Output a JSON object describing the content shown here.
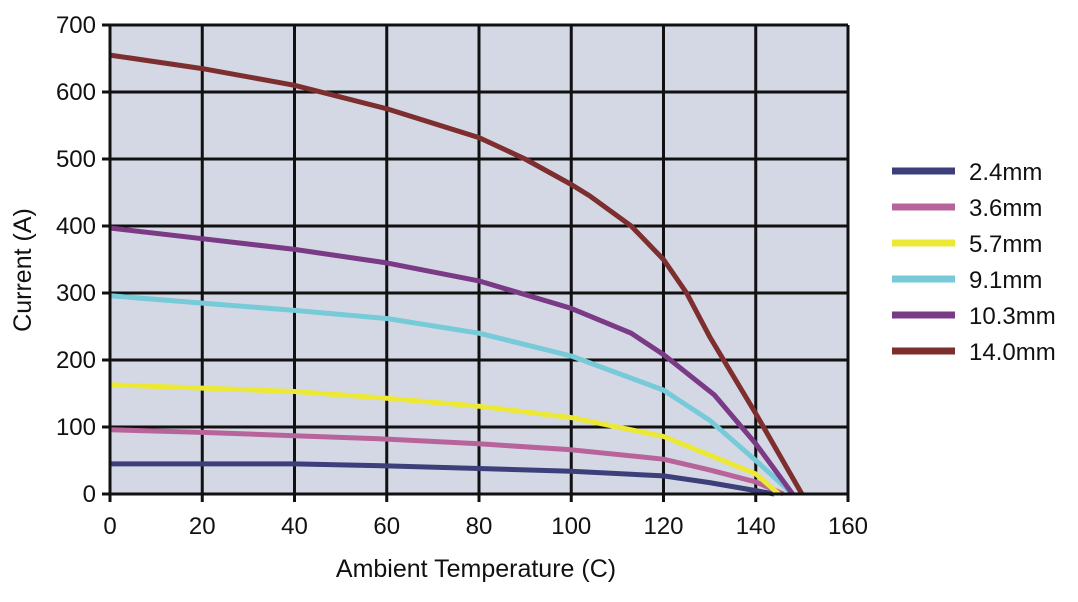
{
  "chart_data": {
    "type": "line",
    "title": "",
    "xlabel": "Ambient Temperature (C)",
    "ylabel": "Current (A)",
    "xlim": [
      0,
      160
    ],
    "ylim": [
      0,
      700
    ],
    "xticks": [
      0,
      20,
      40,
      60,
      80,
      100,
      120,
      140,
      160
    ],
    "yticks": [
      0,
      100,
      200,
      300,
      400,
      500,
      600,
      700
    ],
    "grid": true,
    "legend_position": "right",
    "plot_background": "#d4d8e4",
    "grid_color": "#111111",
    "series": [
      {
        "name": "2.4mm",
        "color": "#3c3f7a",
        "points": [
          [
            0,
            45
          ],
          [
            20,
            45
          ],
          [
            40,
            45
          ],
          [
            60,
            42
          ],
          [
            80,
            38
          ],
          [
            100,
            34
          ],
          [
            120,
            27
          ],
          [
            130,
            17
          ],
          [
            140,
            5
          ],
          [
            144,
            0
          ]
        ]
      },
      {
        "name": "3.6mm",
        "color": "#b8649a",
        "points": [
          [
            0,
            96
          ],
          [
            20,
            92
          ],
          [
            40,
            87
          ],
          [
            60,
            82
          ],
          [
            80,
            75
          ],
          [
            100,
            66
          ],
          [
            120,
            52
          ],
          [
            130,
            36
          ],
          [
            140,
            18
          ],
          [
            146,
            0
          ]
        ]
      },
      {
        "name": "5.7mm",
        "color": "#ece836",
        "points": [
          [
            0,
            163
          ],
          [
            20,
            158
          ],
          [
            40,
            153
          ],
          [
            60,
            143
          ],
          [
            80,
            131
          ],
          [
            100,
            114
          ],
          [
            120,
            86
          ],
          [
            130,
            58
          ],
          [
            140,
            30
          ],
          [
            145,
            0
          ]
        ]
      },
      {
        "name": "9.1mm",
        "color": "#77cad8",
        "points": [
          [
            0,
            296
          ],
          [
            20,
            285
          ],
          [
            40,
            274
          ],
          [
            60,
            262
          ],
          [
            80,
            240
          ],
          [
            100,
            206
          ],
          [
            120,
            155
          ],
          [
            130,
            110
          ],
          [
            140,
            50
          ],
          [
            148,
            0
          ]
        ]
      },
      {
        "name": "10.3mm",
        "color": "#7a3a86",
        "points": [
          [
            0,
            397
          ],
          [
            20,
            381
          ],
          [
            40,
            365
          ],
          [
            60,
            345
          ],
          [
            80,
            318
          ],
          [
            100,
            277
          ],
          [
            113,
            240
          ],
          [
            120,
            208
          ],
          [
            131,
            148
          ],
          [
            140,
            75
          ],
          [
            148,
            0
          ]
        ]
      },
      {
        "name": "14.0mm",
        "color": "#7d2e2e",
        "points": [
          [
            0,
            655
          ],
          [
            20,
            635
          ],
          [
            40,
            610
          ],
          [
            60,
            575
          ],
          [
            80,
            532
          ],
          [
            90,
            500
          ],
          [
            100,
            462
          ],
          [
            104,
            445
          ],
          [
            113,
            400
          ],
          [
            120,
            350
          ],
          [
            125,
            300
          ],
          [
            130,
            235
          ],
          [
            140,
            120
          ],
          [
            150,
            0
          ]
        ]
      }
    ]
  }
}
